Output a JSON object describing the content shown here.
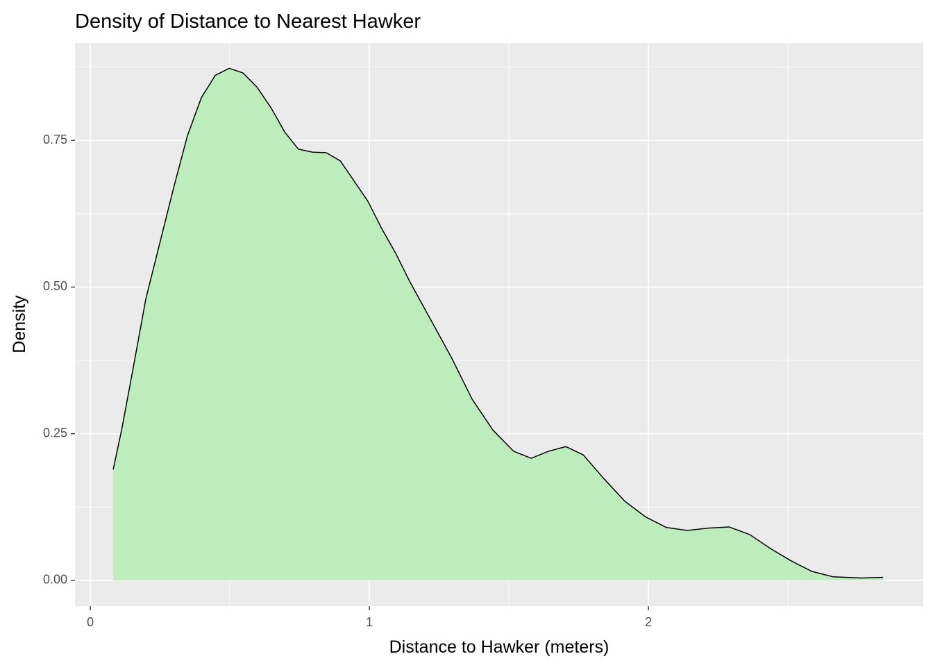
{
  "chart_data": {
    "type": "density",
    "title": "Density of Distance to Nearest Hawker",
    "x_label": "Distance to Hawker (meters)",
    "y_label": "Density",
    "fill": "#bdedbd",
    "line_color": "#000000",
    "grid": true,
    "xlim": [
      -0.055,
      2.985
    ],
    "ylim": [
      -0.044,
      0.916
    ],
    "xticks": [
      0,
      1,
      2
    ],
    "yticks": [
      {
        "value": 0,
        "label": "0.00"
      },
      {
        "value": 0.25,
        "label": "0.25"
      },
      {
        "value": 0.5,
        "label": "0.50"
      },
      {
        "value": 0.75,
        "label": "0.75"
      }
    ],
    "minor_xticks": [
      0.5,
      1.5,
      2.5
    ],
    "minor_yticks": [
      0.125,
      0.375,
      0.625,
      0.875
    ],
    "x": [
      0.082,
      0.112,
      0.149,
      0.199,
      0.249,
      0.299,
      0.348,
      0.398,
      0.448,
      0.498,
      0.547,
      0.597,
      0.647,
      0.697,
      0.746,
      0.796,
      0.846,
      0.896,
      0.945,
      0.995,
      1.045,
      1.095,
      1.144,
      1.219,
      1.294,
      1.368,
      1.443,
      1.517,
      1.58,
      1.642,
      1.704,
      1.766,
      1.841,
      1.915,
      1.99,
      2.065,
      2.139,
      2.214,
      2.289,
      2.363,
      2.438,
      2.512,
      2.587,
      2.662,
      2.761,
      2.841
    ],
    "values": [
      0.189,
      0.256,
      0.35,
      0.48,
      0.575,
      0.67,
      0.758,
      0.823,
      0.861,
      0.873,
      0.865,
      0.841,
      0.806,
      0.764,
      0.735,
      0.73,
      0.729,
      0.715,
      0.681,
      0.646,
      0.599,
      0.557,
      0.51,
      0.445,
      0.38,
      0.309,
      0.256,
      0.22,
      0.208,
      0.22,
      0.228,
      0.214,
      0.173,
      0.135,
      0.108,
      0.09,
      0.085,
      0.089,
      0.091,
      0.078,
      0.054,
      0.033,
      0.015,
      0.006,
      0.004,
      0.005
    ]
  }
}
